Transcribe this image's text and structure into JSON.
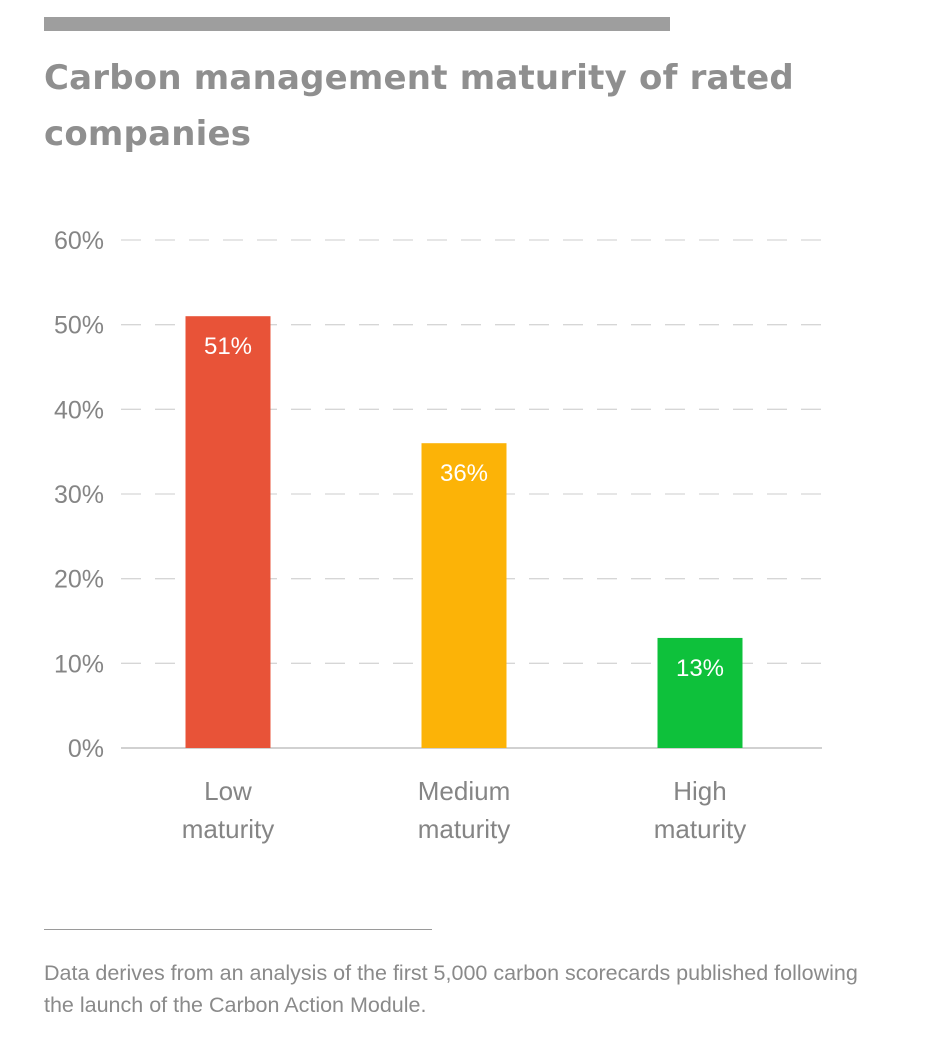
{
  "title": "Carbon management maturity of rated companies",
  "footnote": "Data derives from an analysis of the first 5,000 carbon scorecards published following the launch of the Carbon Action Module.",
  "chart_data": {
    "type": "bar",
    "title": "Carbon management maturity of rated companies",
    "xlabel": "",
    "ylabel": "",
    "categories": [
      [
        "Low",
        "maturity"
      ],
      [
        "Medium",
        "maturity"
      ],
      [
        "High",
        "maturity"
      ]
    ],
    "values": [
      51,
      36,
      13
    ],
    "data_labels": [
      "51%",
      "36%",
      "13%"
    ],
    "colors": [
      "#e85338",
      "#fcb307",
      "#0ec13b"
    ],
    "ylim": [
      0,
      60
    ],
    "yticks": [
      0,
      10,
      20,
      30,
      40,
      50,
      60
    ],
    "ytick_labels": [
      "0%",
      "10%",
      "20%",
      "30%",
      "40%",
      "50%",
      "60%"
    ],
    "grid": "horizontal dashed",
    "legend": "none"
  },
  "colors": {
    "title": "#8f8f8f",
    "axis_text": "#858585",
    "gridline": "#d6d6d6",
    "baseline": "#c2c2c2",
    "rule": "#9e9e9e"
  }
}
